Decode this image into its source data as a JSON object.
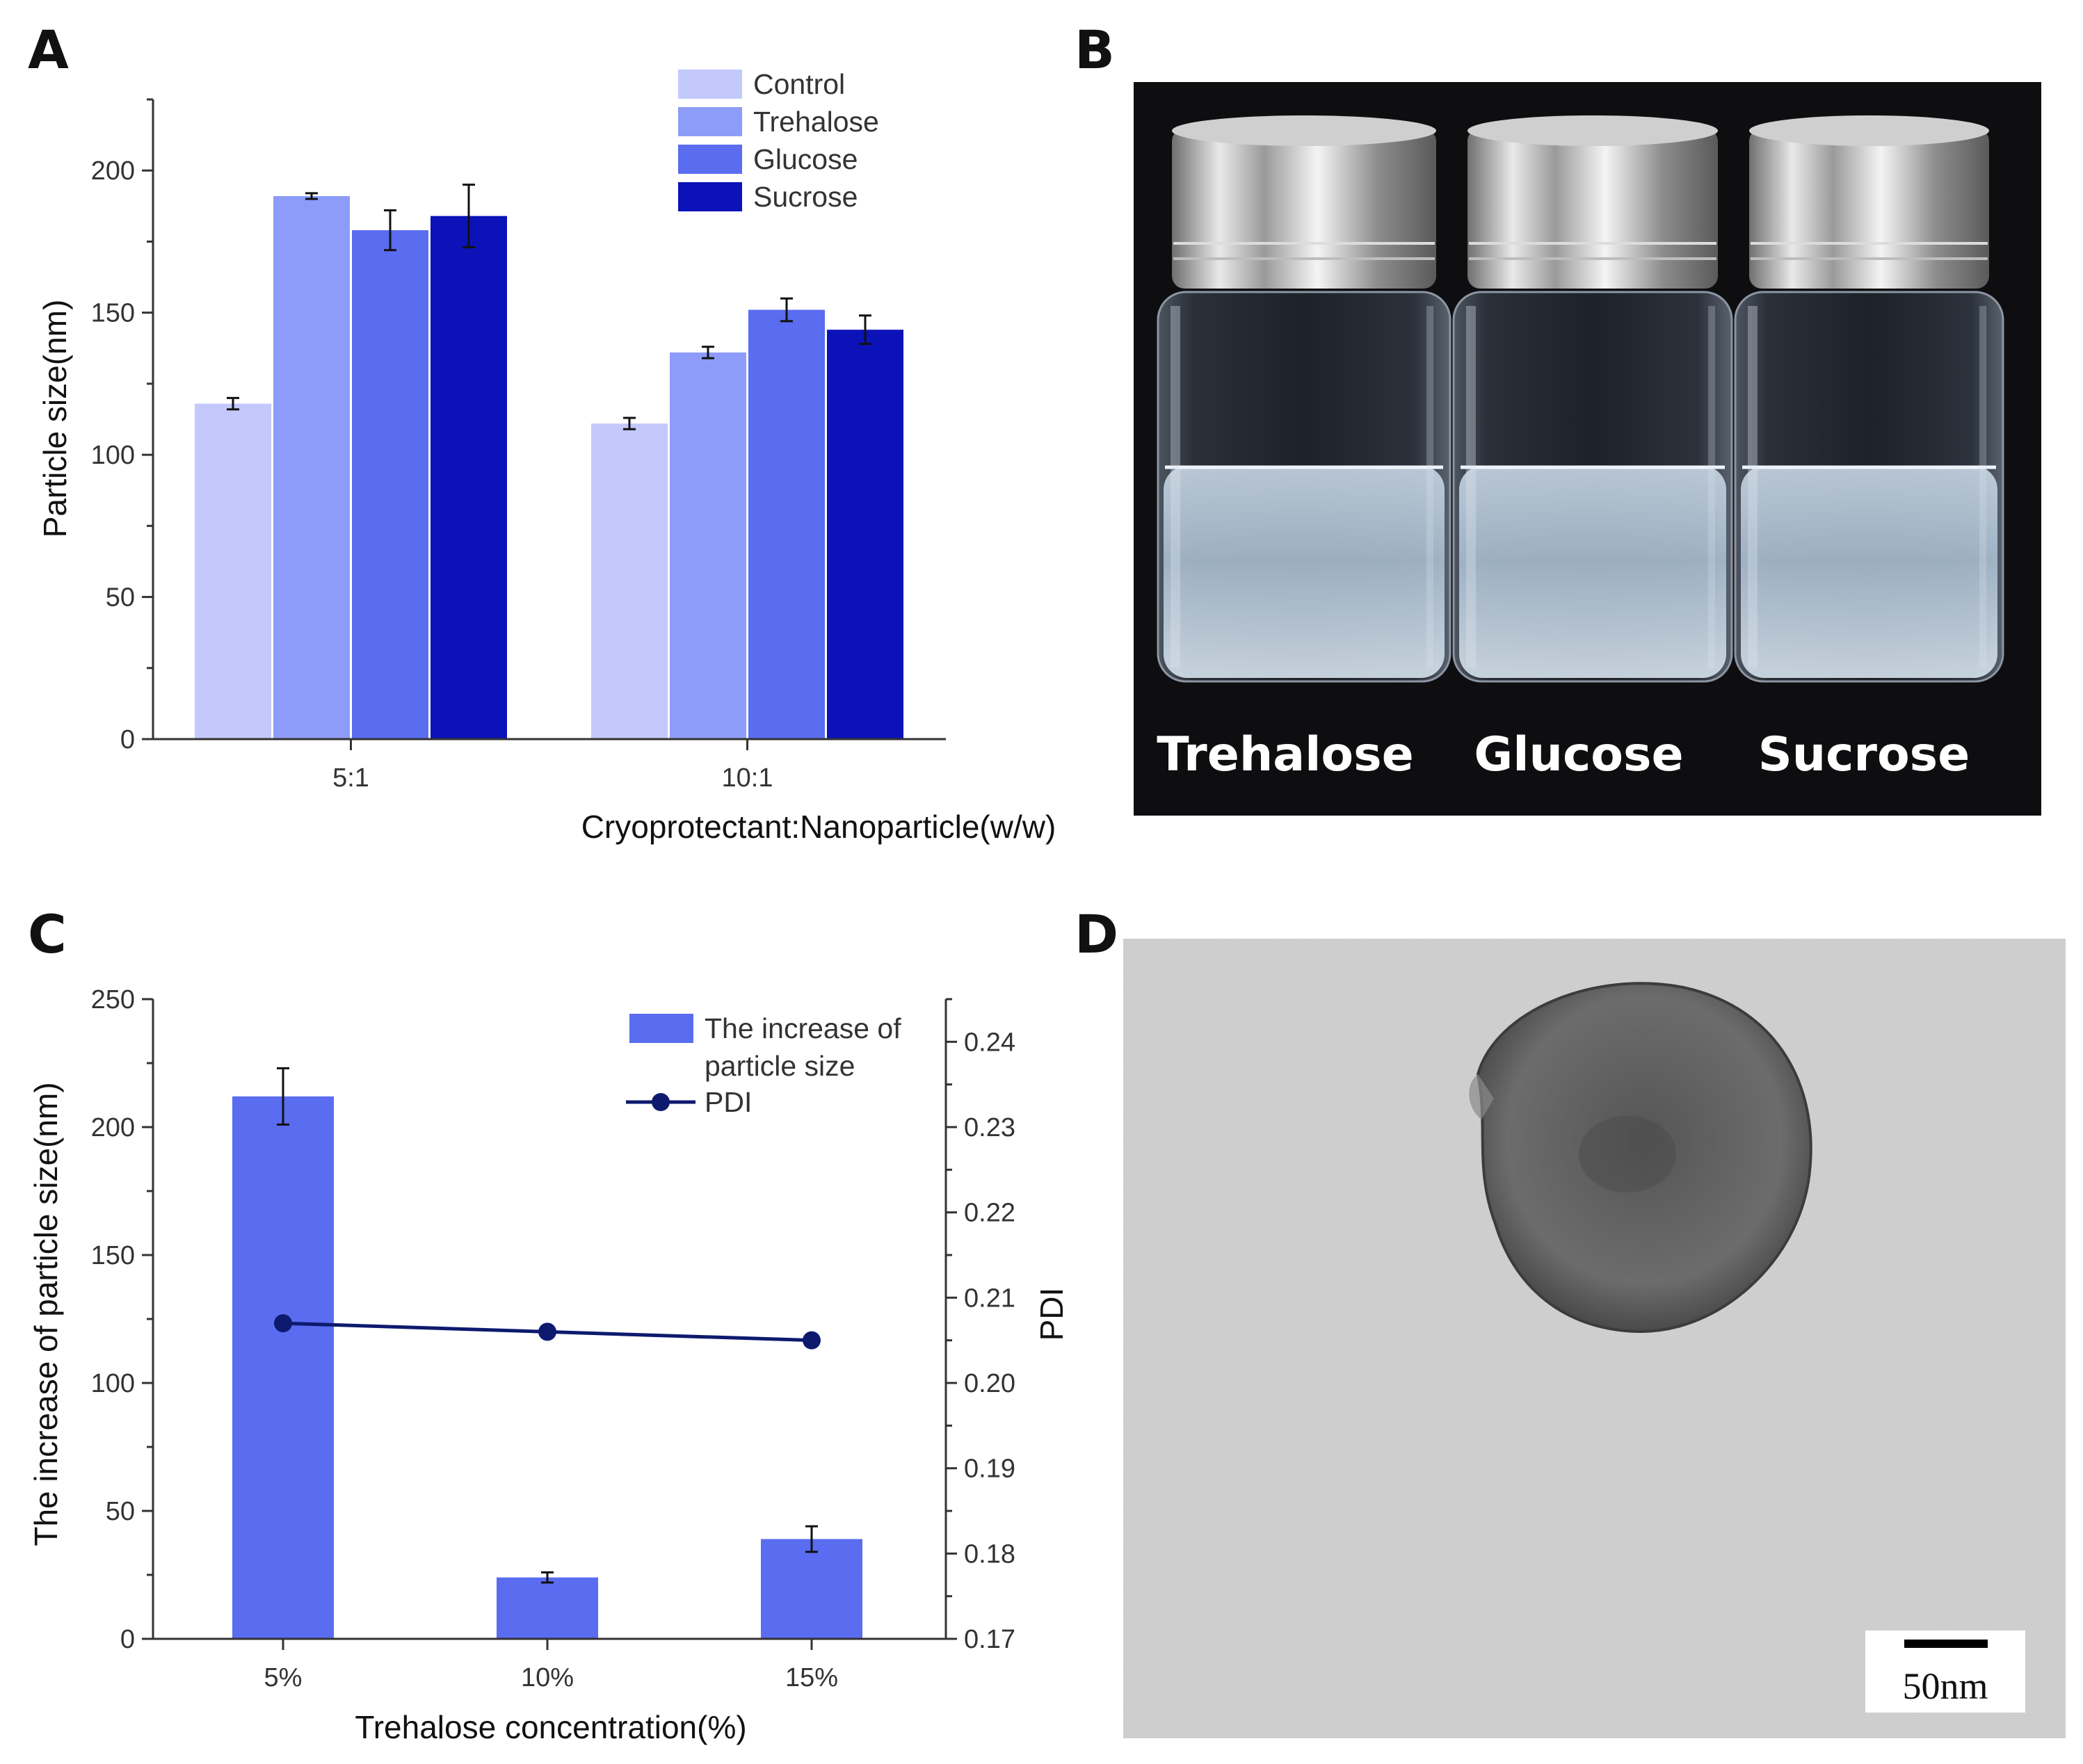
{
  "panels": {
    "A": {
      "letter": "A",
      "chart_data": {
        "type": "bar",
        "categories": [
          "5:1",
          "10:1"
        ],
        "series": [
          {
            "name": "Control",
            "color": "#c3c9fb",
            "values": [
              118,
              111
            ],
            "errors": [
              2,
              2
            ]
          },
          {
            "name": "Trehalose",
            "color": "#8d9cf8",
            "values": [
              191,
              136
            ],
            "errors": [
              1,
              2
            ]
          },
          {
            "name": "Glucose",
            "color": "#5a6cf0",
            "values": [
              179,
              151
            ],
            "errors": [
              7,
              4
            ]
          },
          {
            "name": "Sucrose",
            "color": "#0b12b8",
            "values": [
              184,
              144
            ],
            "errors": [
              11,
              5
            ]
          }
        ],
        "xlabel": "Cryoprotectant:Nanoparticle(w/w)",
        "ylabel": "Particle size(nm)",
        "ylim": [
          0,
          225
        ],
        "yticks": [
          "0",
          "50",
          "100",
          "150",
          "200"
        ],
        "legend_position": "top-right",
        "grid": false
      }
    },
    "B": {
      "letter": "B",
      "photo_labels": [
        "Trehalose",
        "Glucose",
        "Sucrose"
      ]
    },
    "C": {
      "letter": "C",
      "chart_data": {
        "type": "bar",
        "categories": [
          "5%",
          "10%",
          "15%"
        ],
        "series": [
          {
            "name": "The increase of particle size",
            "legend_lines": [
              "The increase of",
              "particle size"
            ],
            "type": "bar",
            "axis": "left",
            "color": "#5a6cf0",
            "values": [
              212,
              24,
              39
            ],
            "errors": [
              11,
              2,
              5
            ]
          },
          {
            "name": "PDI",
            "type": "line",
            "axis": "right",
            "color": "#0d1a6e",
            "values": [
              0.207,
              0.206,
              0.205
            ]
          }
        ],
        "xlabel": "Trehalose concentration(%)",
        "ylabel": "The increase of particle size(nm)",
        "y2label": "PDI",
        "ylim": [
          0,
          250
        ],
        "y2lim": [
          0.17,
          0.245
        ],
        "yticks": [
          "0",
          "50",
          "100",
          "150",
          "200",
          "250"
        ],
        "y2ticks": [
          "0.17",
          "0.18",
          "0.19",
          "0.20",
          "0.21",
          "0.22",
          "0.23",
          "0.24"
        ],
        "legend_position": "top-right",
        "grid": false
      }
    },
    "D": {
      "letter": "D",
      "scale_bar_label": "50nm"
    }
  }
}
